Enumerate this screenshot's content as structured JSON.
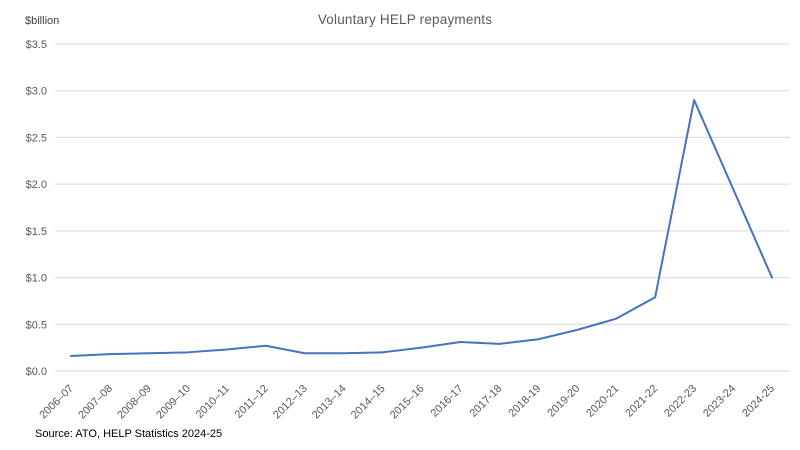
{
  "chart_data": {
    "type": "line",
    "title": "Voluntary HELP repayments",
    "unit_label": "$billion",
    "xlabel": "",
    "ylabel": "$billion",
    "categories": [
      "2006–07",
      "2007–08",
      "2008–09",
      "2009–10",
      "2010–11",
      "2011–12",
      "2012–13",
      "2013–14",
      "2014–15",
      "2015–16",
      "2016-17",
      "2017-18",
      "2018-19",
      "2019-20",
      "2020-21",
      "2021-22",
      "2022-23",
      "2023-24",
      "2024-25"
    ],
    "series": [
      {
        "name": "Voluntary HELP repayments",
        "values": [
          0.16,
          0.18,
          0.19,
          0.2,
          0.23,
          0.27,
          0.19,
          0.19,
          0.2,
          0.25,
          0.31,
          0.29,
          0.34,
          0.44,
          0.56,
          0.79,
          2.9,
          1.95,
          1.0
        ],
        "color": "#4472C4"
      }
    ],
    "ylim": [
      0,
      3.5
    ],
    "y_ticks": [
      {
        "value": 0.0,
        "label": "$0.0"
      },
      {
        "value": 0.5,
        "label": "$0.5"
      },
      {
        "value": 1.0,
        "label": "$1.0"
      },
      {
        "value": 1.5,
        "label": "$1.5"
      },
      {
        "value": 2.0,
        "label": "$2.0"
      },
      {
        "value": 2.5,
        "label": "$2.5"
      },
      {
        "value": 3.0,
        "label": "$3.0"
      },
      {
        "value": 3.5,
        "label": "$3.5"
      }
    ],
    "grid": "horizontal",
    "legend": "none",
    "gridline_color": "#D9D9D9",
    "tick_label_color": "#595959",
    "title_color": "#595959"
  },
  "source": {
    "text": "Source: ATO, HELP Statistics 2024-25"
  }
}
